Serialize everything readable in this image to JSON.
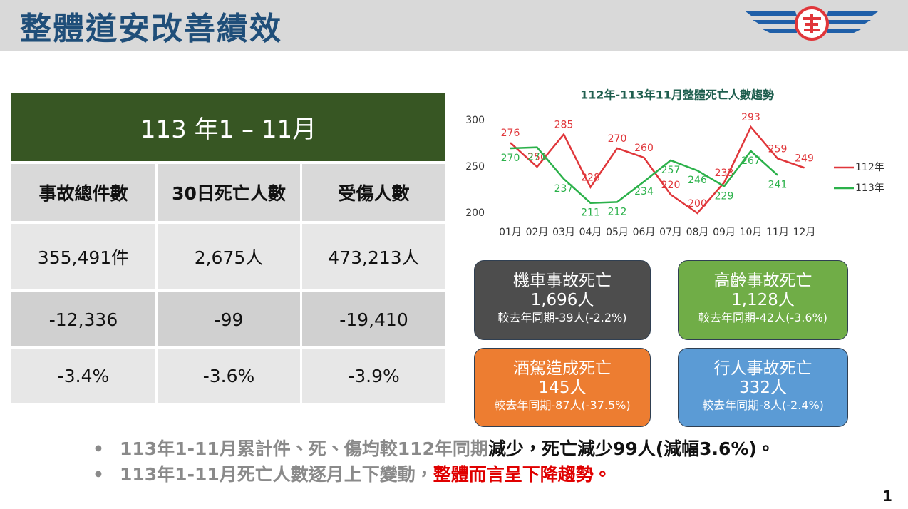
{
  "header": {
    "title": "整體道安改善績效"
  },
  "table": {
    "period": "113 年1 – 11月",
    "columns": [
      "事故總件數",
      "30日死亡人數",
      "受傷人數"
    ],
    "rows": [
      [
        "355,491件",
        "2,675人",
        "473,213人"
      ],
      [
        "-12,336",
        "-99",
        "-19,410"
      ],
      [
        "-3.4%",
        "-3.6%",
        "-3.9%"
      ]
    ]
  },
  "chart_data": {
    "type": "line",
    "title": "112年-113年11月整體死亡人數趨勢",
    "categories": [
      "01月",
      "02月",
      "03月",
      "04月",
      "05月",
      "06月",
      "07月",
      "08月",
      "09月",
      "10月",
      "11月",
      "12月"
    ],
    "series": [
      {
        "name": "112年",
        "color": "#e0363a",
        "values": [
          276,
          250,
          285,
          228,
          270,
          260,
          220,
          200,
          233,
          293,
          259,
          249
        ]
      },
      {
        "name": "113年",
        "color": "#2bb14a",
        "values": [
          270,
          271,
          237,
          211,
          212,
          234,
          257,
          246,
          229,
          267,
          241,
          null
        ]
      }
    ],
    "ylim": [
      200,
      300
    ],
    "yticks": [
      200,
      250,
      300
    ],
    "legend": "right"
  },
  "boxes": [
    {
      "title": "機車事故死亡",
      "value": "1,696人",
      "compare": "較去年同期-39人(-2.2%)",
      "color": "#4d4d4d"
    },
    {
      "title": "高齡事故死亡",
      "value": "1,128人",
      "compare": "較去年同期-42人(-3.6%)",
      "color": "#70ad47"
    },
    {
      "title": "酒駕造成死亡",
      "value": "145人",
      "compare": "較去年同期-87人(-37.5%)",
      "color": "#ed7d31"
    },
    {
      "title": "行人事故死亡",
      "value": "332人",
      "compare": "較去年同期-8人(-2.4%)",
      "color": "#5b9bd5"
    }
  ],
  "bullets": [
    [
      "113年1-11月累計件、死、傷均較112年同期",
      "減少，死亡減少99人(減幅3.6%)。"
    ],
    [
      "113年1-11月死亡人數逐月上下變動，",
      "整體而言呈下降趨勢。"
    ]
  ],
  "page_number": "1"
}
